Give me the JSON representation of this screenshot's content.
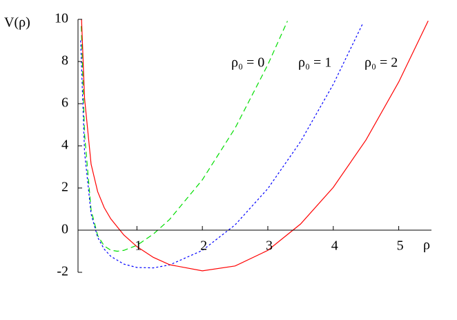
{
  "chart_data": {
    "type": "line",
    "ylabel": "V(ρ)",
    "xlabel": "ρ",
    "xlim": [
      0.1,
      5.5
    ],
    "ylim": [
      -2,
      10
    ],
    "xticks": [
      1,
      2,
      3,
      4,
      5
    ],
    "yticks": [
      -2,
      0,
      2,
      4,
      6,
      8,
      10
    ],
    "series": [
      {
        "name": "ρ₀ = 0",
        "color": "#00dd00",
        "style": "dashed",
        "x": [
          0.15,
          0.2,
          0.3,
          0.4,
          0.5,
          0.6,
          0.7,
          0.8,
          1.0,
          1.25,
          1.5,
          2.0,
          2.5,
          3.0,
          3.3
        ],
        "values": [
          9.68,
          4.56,
          0.95,
          -0.25,
          -0.75,
          -0.95,
          -1.0,
          -0.96,
          -0.72,
          -0.19,
          0.51,
          2.39,
          4.84,
          7.85,
          9.92
        ]
      },
      {
        "name": "ρ₀ = 1",
        "color": "#0000ff",
        "style": "dotted",
        "x": [
          0.14,
          0.2,
          0.3,
          0.4,
          0.5,
          0.6,
          0.8,
          1.0,
          1.25,
          1.5,
          2.0,
          2.5,
          3.0,
          3.5,
          4.0,
          4.45
        ],
        "values": [
          9.0,
          3.7,
          0.77,
          -0.34,
          -0.9,
          -1.24,
          -1.61,
          -1.77,
          -1.79,
          -1.65,
          -0.96,
          0.25,
          1.97,
          4.2,
          6.92,
          9.8
        ]
      },
      {
        "name": "ρ₀ = 2",
        "color": "#ff0000",
        "style": "solid",
        "x": [
          0.15,
          0.2,
          0.3,
          0.4,
          0.5,
          0.6,
          0.8,
          1.0,
          1.25,
          1.5,
          2.0,
          2.5,
          3.0,
          3.5,
          4.0,
          4.5,
          5.0,
          5.45
        ],
        "values": [
          10.33,
          6.26,
          3.13,
          1.83,
          1.07,
          0.54,
          -0.23,
          -0.78,
          -1.29,
          -1.64,
          -1.93,
          -1.7,
          -0.96,
          0.29,
          2.03,
          4.28,
          7.03,
          9.93
        ]
      }
    ]
  }
}
